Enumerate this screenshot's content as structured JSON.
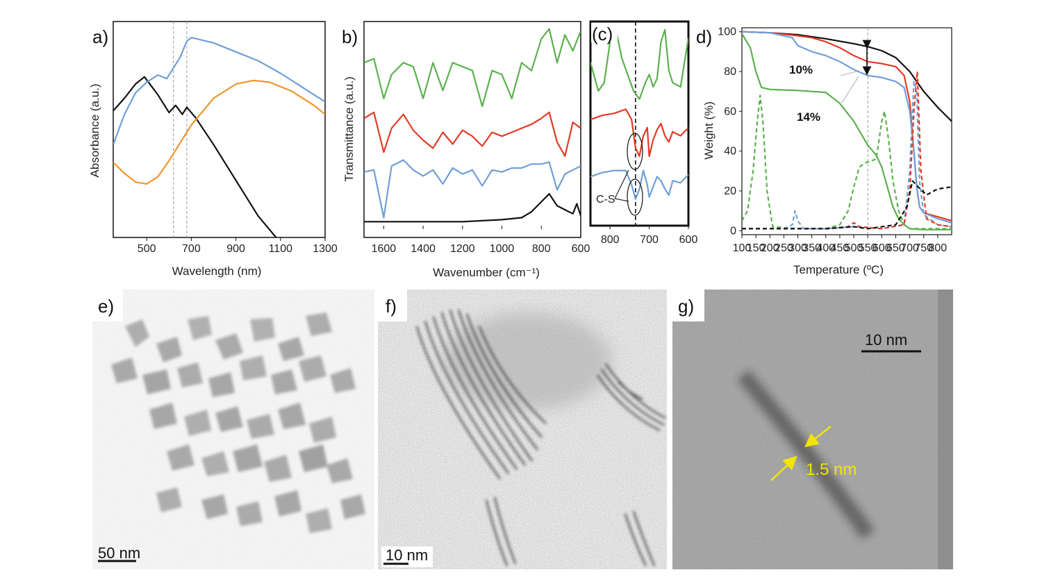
{
  "panels": {
    "a": {
      "label": "a)",
      "xlabel": "Wavelength (nm)",
      "ylabel": "Absorbance (a.u.)",
      "xticks": [
        "500",
        "700",
        "900",
        "1100",
        "1300"
      ]
    },
    "b": {
      "label": "b)",
      "xlabel": "Wavenumber (cm⁻¹)",
      "ylabel": "Transmittance (a.u.)",
      "xticks": [
        "1600",
        "1400",
        "1200",
        "1000",
        "800",
        "600"
      ]
    },
    "c": {
      "label": "(c)",
      "xticks": [
        "800",
        "700",
        "600"
      ],
      "annotation": "C-S"
    },
    "d": {
      "label": "d)",
      "xlabel": "Temperature (ºC)",
      "ylabel": "Weight (%)",
      "xticks": [
        "100",
        "150",
        "200",
        "250",
        "300",
        "350",
        "400",
        "450",
        "500",
        "550",
        "600",
        "650",
        "700",
        "750",
        "800"
      ],
      "yticks": [
        "0",
        "20",
        "40",
        "60",
        "80",
        "100"
      ],
      "annot_10": "10%",
      "annot_14": "14%"
    },
    "e": {
      "label": "e)",
      "scalebar": "50 nm"
    },
    "f": {
      "label": "f)",
      "scalebar": "10 nm"
    },
    "g": {
      "label": "g)",
      "scalebar": "10 nm",
      "measure": "1.5 nm"
    }
  },
  "colors": {
    "black": "#111111",
    "blue": "#6f9fd8",
    "orange": "#f0962a",
    "green": "#5cb04f",
    "red": "#e23a24",
    "yellow": "#f2e600"
  },
  "chart_data": [
    {
      "panel": "a",
      "type": "line",
      "xlabel": "Wavelength (nm)",
      "ylabel": "Absorbance (a.u.)",
      "xlim": [
        350,
        1300
      ],
      "series": [
        {
          "color": "black",
          "x": [
            350,
            400,
            450,
            490,
            550,
            600,
            630,
            660,
            680,
            720,
            800,
            900,
            1000,
            1080
          ],
          "y": [
            0.65,
            0.72,
            0.8,
            0.84,
            0.74,
            0.64,
            0.68,
            0.63,
            0.67,
            0.61,
            0.46,
            0.26,
            0.06,
            -0.06
          ]
        },
        {
          "color": "blue",
          "x": [
            350,
            400,
            450,
            500,
            550,
            590,
            620,
            650,
            680,
            700,
            800,
            900,
            1000,
            1100,
            1200,
            1300
          ],
          "y": [
            0.46,
            0.63,
            0.75,
            0.81,
            0.85,
            0.83,
            0.89,
            0.95,
            1.04,
            1.06,
            1.03,
            0.98,
            0.93,
            0.86,
            0.78,
            0.7
          ]
        },
        {
          "color": "orange",
          "x": [
            350,
            400,
            450,
            500,
            550,
            600,
            650,
            700,
            800,
            900,
            980,
            1050,
            1150,
            1250,
            1300
          ],
          "y": [
            0.36,
            0.3,
            0.25,
            0.24,
            0.28,
            0.37,
            0.47,
            0.57,
            0.72,
            0.8,
            0.82,
            0.81,
            0.76,
            0.68,
            0.63
          ]
        }
      ],
      "dashed_vlines": [
        620,
        680
      ]
    },
    {
      "panel": "b",
      "type": "line",
      "xlabel": "Wavenumber (cm⁻¹)",
      "ylabel": "Transmittance (a.u.)",
      "xlim": [
        1700,
        600
      ],
      "series": [
        {
          "color": "green",
          "x": [
            1700,
            1650,
            1600,
            1560,
            1500,
            1450,
            1400,
            1350,
            1300,
            1250,
            1200,
            1150,
            1100,
            1050,
            1000,
            950,
            900,
            850,
            800,
            760,
            720,
            680,
            640,
            600
          ],
          "y": [
            0.8,
            0.82,
            0.62,
            0.74,
            0.8,
            0.78,
            0.62,
            0.8,
            0.66,
            0.8,
            0.78,
            0.76,
            0.58,
            0.76,
            0.74,
            0.62,
            0.8,
            0.76,
            0.92,
            0.97,
            0.8,
            0.94,
            0.86,
            0.96
          ]
        },
        {
          "color": "red",
          "x": [
            1700,
            1650,
            1600,
            1560,
            1500,
            1450,
            1400,
            1350,
            1300,
            1250,
            1200,
            1150,
            1100,
            1050,
            1000,
            950,
            900,
            850,
            800,
            760,
            720,
            680,
            640,
            600
          ],
          "y": [
            0.52,
            0.55,
            0.35,
            0.47,
            0.54,
            0.46,
            0.41,
            0.37,
            0.45,
            0.39,
            0.46,
            0.43,
            0.38,
            0.45,
            0.43,
            0.45,
            0.47,
            0.49,
            0.52,
            0.55,
            0.4,
            0.33,
            0.5,
            0.47
          ]
        },
        {
          "color": "blue",
          "x": [
            1700,
            1650,
            1600,
            1560,
            1500,
            1450,
            1400,
            1350,
            1300,
            1250,
            1200,
            1150,
            1100,
            1050,
            1000,
            950,
            900,
            850,
            800,
            760,
            720,
            680,
            640,
            600
          ],
          "y": [
            0.25,
            0.26,
            0.02,
            0.28,
            0.31,
            0.26,
            0.23,
            0.26,
            0.19,
            0.27,
            0.24,
            0.26,
            0.18,
            0.26,
            0.25,
            0.27,
            0.27,
            0.29,
            0.29,
            0.3,
            0.16,
            0.24,
            0.26,
            0.28
          ]
        },
        {
          "color": "black",
          "x": [
            1700,
            1600,
            1400,
            1200,
            1000,
            900,
            850,
            800,
            760,
            720,
            680,
            640,
            620,
            600
          ],
          "y": [
            0.0,
            0.0,
            0.0,
            0.0,
            0.01,
            0.02,
            0.05,
            0.1,
            0.14,
            0.08,
            0.06,
            0.04,
            0.09,
            0.03
          ]
        }
      ]
    },
    {
      "panel": "c",
      "type": "line",
      "xlim": [
        850,
        600
      ],
      "series": [
        {
          "color": "green",
          "x": [
            850,
            830,
            815,
            800,
            785,
            770,
            755,
            740,
            725,
            710,
            700,
            690,
            680,
            670,
            660,
            650,
            640,
            620,
            600
          ],
          "y": [
            0.8,
            0.66,
            0.7,
            0.9,
            0.96,
            0.82,
            0.74,
            0.66,
            0.62,
            0.7,
            0.74,
            0.68,
            0.72,
            0.9,
            0.96,
            0.76,
            0.7,
            0.68,
            0.92
          ]
        },
        {
          "color": "red",
          "x": [
            850,
            820,
            790,
            760,
            745,
            735,
            725,
            715,
            705,
            700,
            690,
            680,
            670,
            660,
            650,
            640,
            620,
            600
          ],
          "y": [
            0.52,
            0.54,
            0.55,
            0.57,
            0.52,
            0.38,
            0.34,
            0.44,
            0.48,
            0.34,
            0.42,
            0.47,
            0.5,
            0.44,
            0.41,
            0.46,
            0.44,
            0.48
          ]
        },
        {
          "color": "blue",
          "x": [
            850,
            820,
            790,
            760,
            745,
            735,
            725,
            715,
            705,
            700,
            690,
            680,
            670,
            660,
            650,
            640,
            620,
            600
          ],
          "y": [
            0.24,
            0.26,
            0.27,
            0.27,
            0.2,
            0.13,
            0.18,
            0.27,
            0.2,
            0.14,
            0.19,
            0.24,
            0.22,
            0.18,
            0.15,
            0.22,
            0.21,
            0.25
          ]
        }
      ],
      "dashed_vline": 735
    },
    {
      "panel": "d",
      "type": "line",
      "xlabel": "Temperature (ºC)",
      "ylabel": "Weight (%)",
      "xlim": [
        100,
        850
      ],
      "ylim": [
        -2,
        102
      ],
      "series": [
        {
          "color": "black",
          "style": "solid",
          "x": [
            100,
            200,
            300,
            400,
            500,
            550,
            600,
            650,
            700,
            750,
            800,
            850
          ],
          "y": [
            100,
            99.5,
            98.5,
            96.5,
            94,
            92.5,
            90.5,
            87,
            80,
            70,
            62,
            55
          ]
        },
        {
          "color": "red",
          "style": "solid",
          "x": [
            100,
            200,
            300,
            350,
            400,
            450,
            500,
            550,
            600,
            650,
            680,
            700,
            715,
            725,
            735,
            750,
            800,
            850
          ],
          "y": [
            100,
            99.5,
            98,
            97,
            95,
            92,
            88,
            85,
            84,
            82.5,
            78,
            65,
            40,
            22,
            12,
            9,
            7,
            5
          ]
        },
        {
          "color": "blue",
          "style": "solid",
          "x": [
            100,
            200,
            280,
            300,
            350,
            400,
            450,
            500,
            550,
            600,
            650,
            680,
            700,
            715,
            725,
            735,
            750,
            800,
            850
          ],
          "y": [
            100,
            99.5,
            97,
            93,
            90,
            88,
            85,
            81,
            78,
            77,
            75,
            72,
            60,
            40,
            22,
            12,
            9,
            6,
            4
          ]
        },
        {
          "color": "green",
          "style": "solid",
          "x": [
            100,
            130,
            150,
            170,
            200,
            300,
            400,
            450,
            500,
            550,
            580,
            600,
            620,
            640,
            660,
            680,
            700,
            750,
            850
          ],
          "y": [
            99,
            92,
            80,
            72,
            71,
            70.5,
            69.5,
            64,
            55,
            43,
            38,
            32,
            22,
            12,
            6,
            3,
            1,
            0.5,
            0.5
          ]
        },
        {
          "color": "green",
          "style": "dashed",
          "x": [
            100,
            120,
            140,
            155,
            165,
            175,
            190,
            210,
            300,
            400,
            450,
            480,
            500,
            520,
            540,
            560,
            580,
            600,
            610,
            625,
            640,
            660,
            680,
            700,
            850
          ],
          "y": [
            5,
            10,
            30,
            55,
            68,
            55,
            20,
            2,
            1,
            1,
            3,
            10,
            22,
            32,
            34,
            35,
            36,
            55,
            60,
            45,
            25,
            10,
            3,
            1,
            1
          ]
        },
        {
          "color": "blue",
          "style": "dashed",
          "x": [
            100,
            250,
            280,
            290,
            300,
            320,
            400,
            500,
            600,
            680,
            700,
            715,
            725,
            735,
            750,
            800,
            850
          ],
          "y": [
            1,
            1,
            3,
            10,
            5,
            1,
            1,
            2,
            1,
            3,
            30,
            75,
            70,
            25,
            8,
            3,
            2
          ]
        },
        {
          "color": "red",
          "style": "dashed",
          "x": [
            100,
            300,
            400,
            480,
            500,
            520,
            600,
            680,
            700,
            715,
            727,
            740,
            760,
            800,
            850
          ],
          "y": [
            1,
            1,
            1,
            2,
            4,
            2,
            1,
            3,
            20,
            60,
            80,
            30,
            6,
            3,
            2
          ]
        },
        {
          "color": "black",
          "style": "dashed",
          "x": [
            100,
            400,
            500,
            550,
            650,
            690,
            710,
            730,
            760,
            800,
            850
          ],
          "y": [
            1,
            1,
            2,
            1,
            3,
            12,
            25,
            22,
            18,
            21,
            22
          ]
        }
      ],
      "dashed_vline": 550
    }
  ]
}
